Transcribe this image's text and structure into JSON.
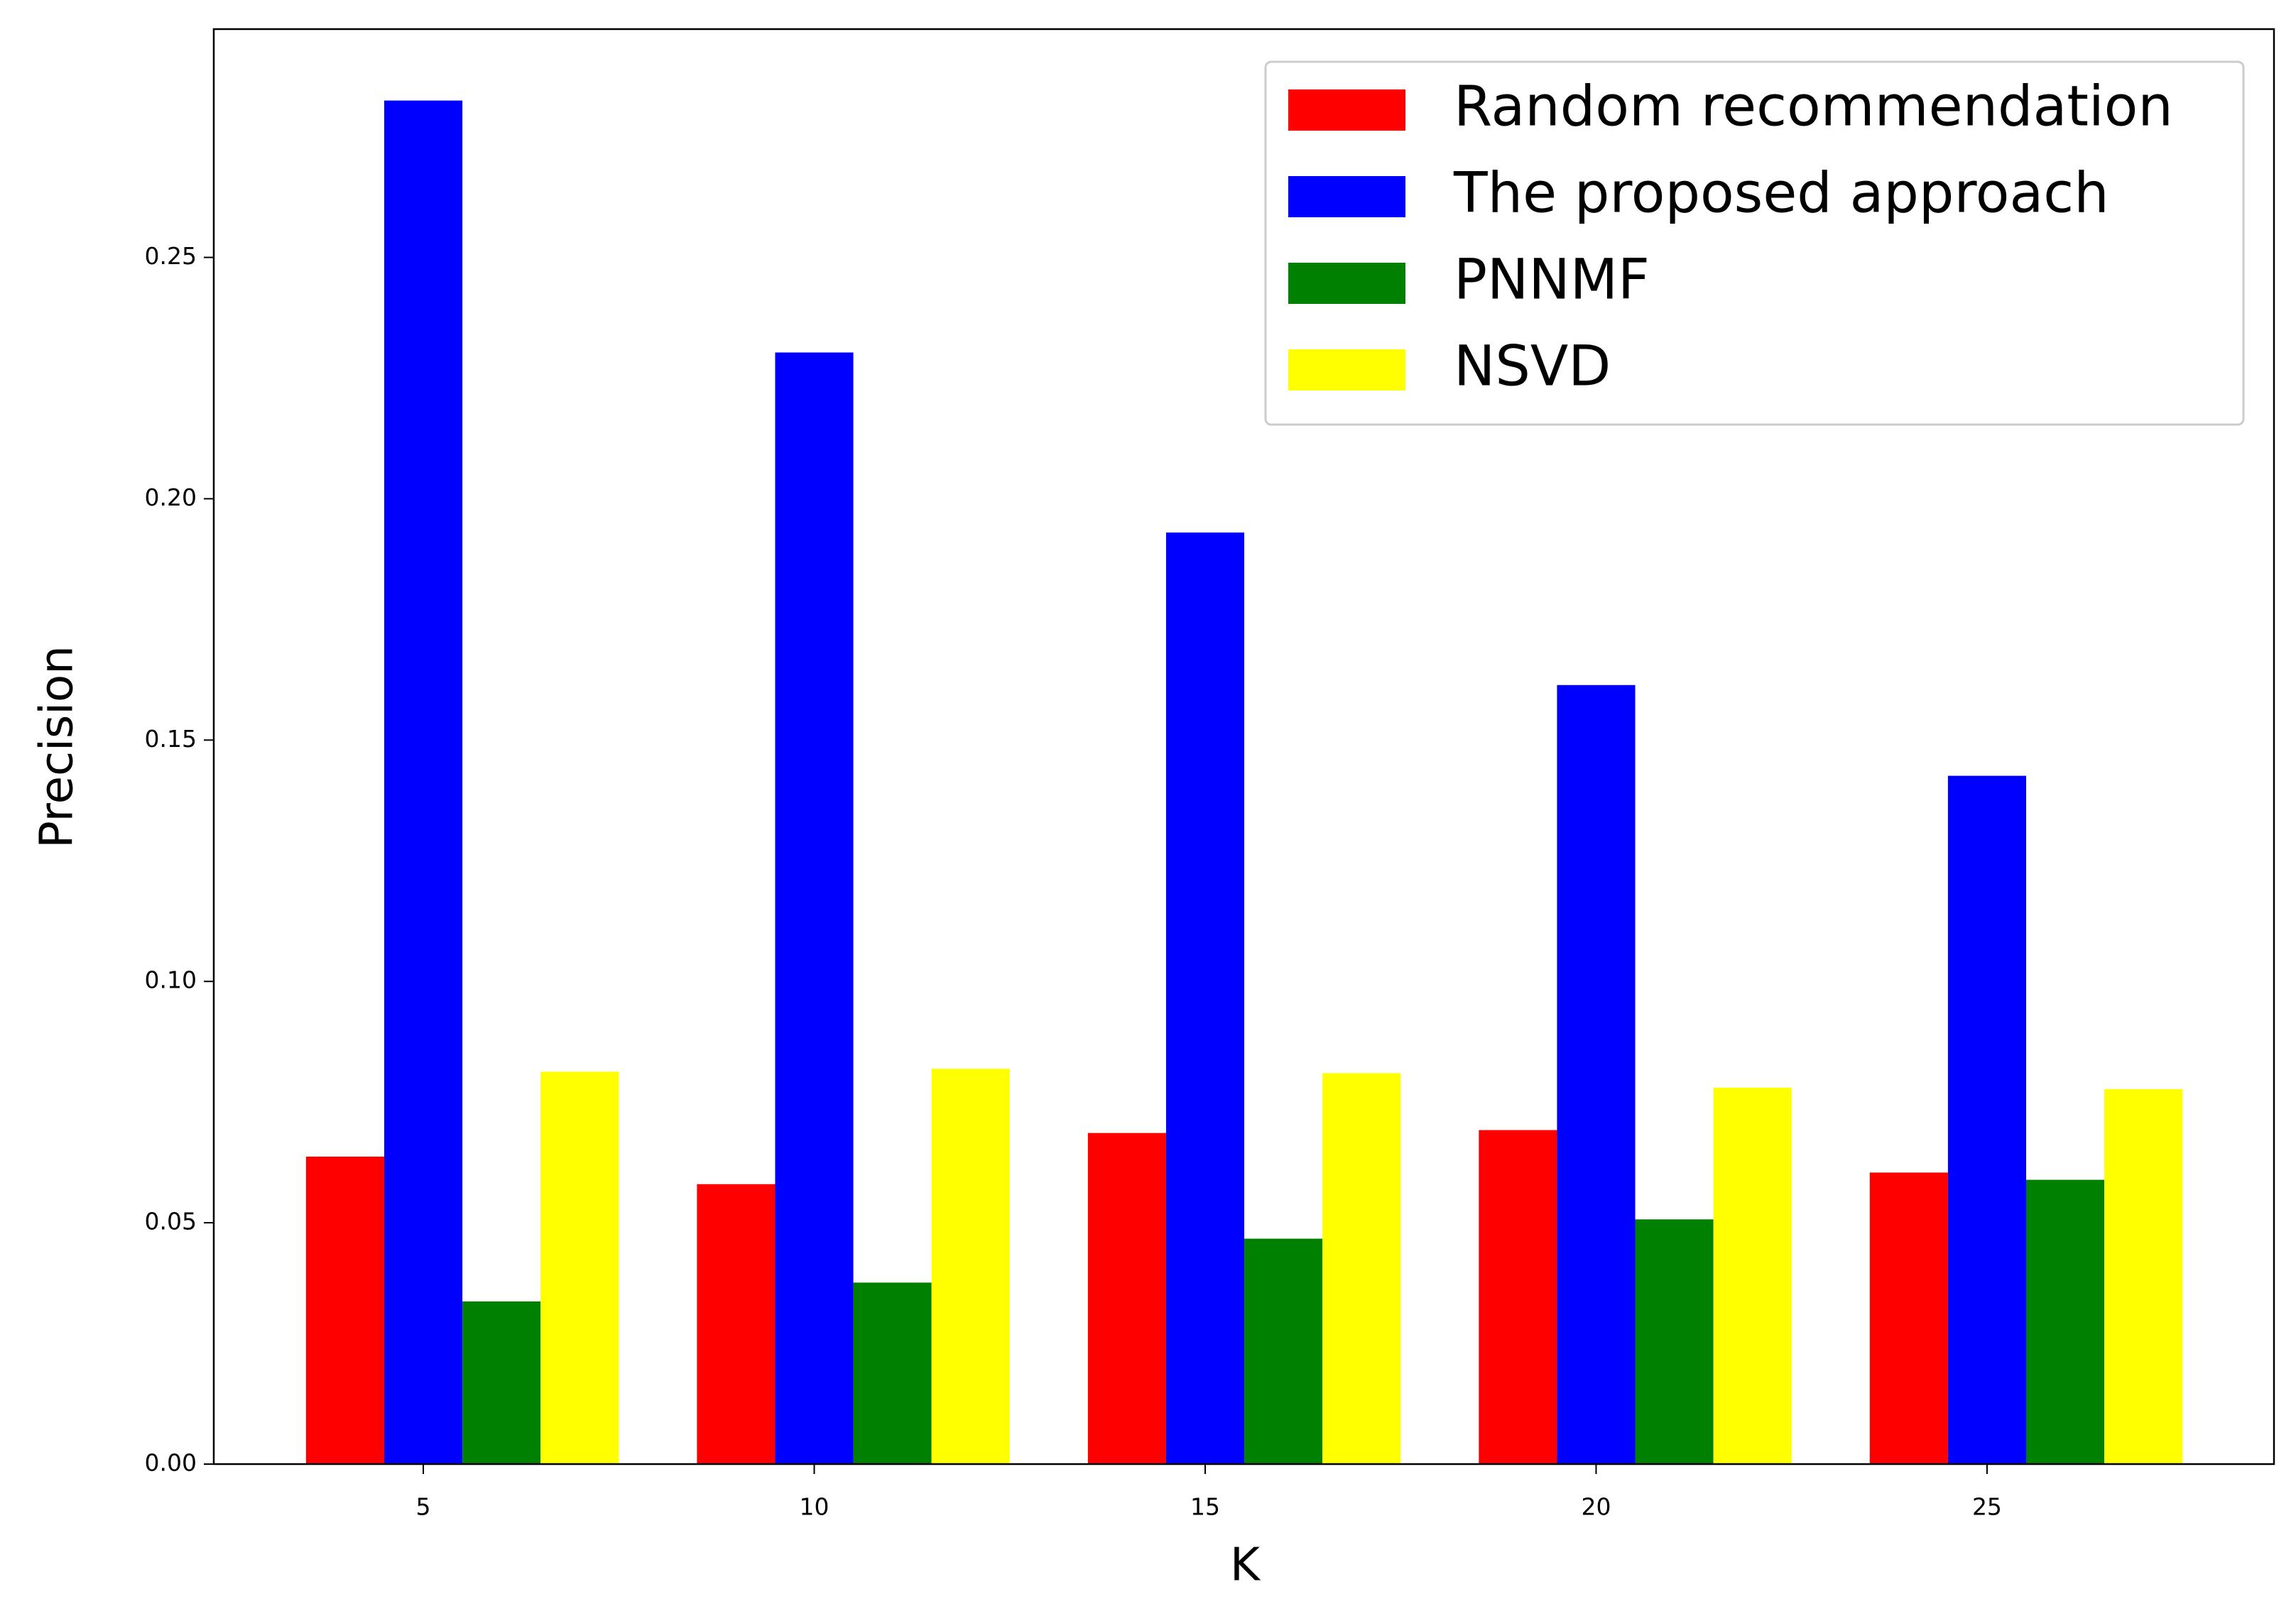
{
  "chart_data": {
    "type": "bar",
    "x_label": "K",
    "y_label": "Precision",
    "x": [
      5,
      10,
      15,
      20,
      25
    ],
    "series": [
      {
        "name": "Random recommendation",
        "color": "#ff0000",
        "values": [
          0.0637,
          0.058,
          0.0686,
          0.0692,
          0.0604
        ]
      },
      {
        "name": "The proposed approach",
        "color": "#0000ff",
        "values": [
          0.2825,
          0.2303,
          0.193,
          0.1614,
          0.1426
        ]
      },
      {
        "name": "PNNMF",
        "color": "#008000",
        "values": [
          0.0337,
          0.0376,
          0.0467,
          0.0507,
          0.0589
        ]
      },
      {
        "name": "NSVD",
        "color": "#ffff00",
        "values": [
          0.0813,
          0.0819,
          0.081,
          0.078,
          0.0777
        ]
      }
    ],
    "xlim": [
      2.32,
      28.67
    ],
    "xticks": [
      5,
      10,
      15,
      20,
      25
    ],
    "ylim": [
      0,
      0.2973
    ],
    "yticks": [
      {
        "value": 0,
        "label": "0.00"
      },
      {
        "value": 0.05,
        "label": "0.05"
      },
      {
        "value": 0.1,
        "label": "0.10"
      },
      {
        "value": 0.15,
        "label": "0.15"
      },
      {
        "value": 0.2,
        "label": "0.20"
      },
      {
        "value": 0.25,
        "label": "0.25"
      }
    ],
    "legend": "upper right",
    "grid": false
  }
}
